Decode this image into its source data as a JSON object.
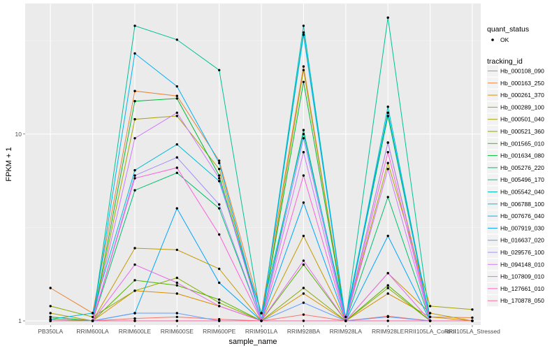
{
  "chart_data": {
    "type": "line",
    "xlabel": "sample_name",
    "ylabel": "FPKM + 1",
    "y_scale": "log",
    "ylim": [
      0.95,
      50
    ],
    "y_ticks": [
      {
        "value": 1,
        "label": "1"
      },
      {
        "value": 10,
        "label": "10"
      }
    ],
    "grid": true,
    "legend_position": "right",
    "categories": [
      "PB350LA",
      "RRIM600LA",
      "RRIM600LE",
      "RRIM600SE",
      "RRIM600PE",
      "RRIM901LA",
      "RRIM928BA",
      "RRIM928LA",
      "RRIM928LE",
      "RRII105LA_Control",
      "RRII105LA_Stressed"
    ],
    "point_legend": {
      "title": "quant_status",
      "entries": [
        {
          "label": "OK"
        }
      ]
    },
    "series_legend_title": "tracking_id",
    "series": [
      {
        "name": "Hb_000108_090",
        "color": "#F8766D",
        "values": [
          1.0,
          1.0,
          1.03,
          1.05,
          1.02,
          1.0,
          1.08,
          1.0,
          1.06,
          1.0,
          1.0
        ]
      },
      {
        "name": "Hb_000163_250",
        "color": "#EB8335",
        "values": [
          1.5,
          1.1,
          17.0,
          16.0,
          7.2,
          1.1,
          23.0,
          1.0,
          9.0,
          1.05,
          1.04
        ]
      },
      {
        "name": "Hb_000261_370",
        "color": "#DA8F00",
        "values": [
          1.05,
          1.0,
          1.45,
          1.4,
          1.2,
          1.0,
          1.4,
          1.0,
          1.4,
          1.05,
          1.0
        ]
      },
      {
        "name": "Hb_000289_100",
        "color": "#C49A00",
        "values": [
          1.0,
          1.0,
          2.45,
          2.4,
          1.9,
          1.0,
          2.85,
          1.0,
          1.8,
          1.1,
          1.0
        ]
      },
      {
        "name": "Hb_000501_040",
        "color": "#A9A400",
        "values": [
          1.1,
          1.0,
          12.0,
          12.5,
          6.5,
          1.0,
          22.0,
          1.0,
          7.0,
          1.2,
          1.15
        ]
      },
      {
        "name": "Hb_000521_360",
        "color": "#86AC00",
        "values": [
          1.2,
          1.05,
          1.45,
          1.7,
          1.25,
          1.0,
          1.5,
          1.0,
          1.5,
          1.0,
          1.0
        ]
      },
      {
        "name": "Hb_001565_010",
        "color": "#53B400",
        "values": [
          1.02,
          1.0,
          1.65,
          1.55,
          1.3,
          1.0,
          2.0,
          1.0,
          1.55,
          1.0,
          1.0
        ]
      },
      {
        "name": "Hb_001634_080",
        "color": "#00BA38",
        "values": [
          1.0,
          1.0,
          15.0,
          15.5,
          6.0,
          1.0,
          19.0,
          1.0,
          12.5,
          1.0,
          1.0
        ]
      },
      {
        "name": "Hb_005276_220",
        "color": "#00BE6C",
        "values": [
          1.05,
          1.0,
          5.0,
          6.2,
          4.0,
          1.0,
          10.5,
          1.0,
          4.6,
          1.0,
          1.0
        ]
      },
      {
        "name": "Hb_005496_170",
        "color": "#00C094",
        "values": [
          1.0,
          1.0,
          38.0,
          32.0,
          22.0,
          1.0,
          35.0,
          1.0,
          42.0,
          1.0,
          1.0
        ]
      },
      {
        "name": "Hb_005542_040",
        "color": "#00BFB9",
        "values": [
          1.0,
          1.0,
          1.0,
          1.0,
          1.0,
          1.0,
          38.0,
          1.0,
          14.0,
          1.0,
          1.0
        ]
      },
      {
        "name": "Hb_006788_100",
        "color": "#00BBDA",
        "values": [
          1.02,
          1.1,
          6.4,
          8.8,
          5.6,
          1.1,
          10.0,
          1.05,
          13.0,
          1.0,
          1.0
        ]
      },
      {
        "name": "Hb_007676_040",
        "color": "#00B2F4",
        "values": [
          1.0,
          1.0,
          27.0,
          18.0,
          7.0,
          1.0,
          34.0,
          1.0,
          13.0,
          1.0,
          1.0
        ]
      },
      {
        "name": "Hb_007919_030",
        "color": "#00A5FF",
        "values": [
          1.0,
          1.0,
          1.1,
          4.0,
          1.6,
          1.0,
          4.3,
          1.0,
          2.85,
          1.0,
          1.0
        ]
      },
      {
        "name": "Hb_016637_020",
        "color": "#619CFF",
        "values": [
          1.0,
          1.0,
          1.1,
          1.1,
          1.0,
          1.0,
          1.25,
          1.0,
          1.05,
          1.0,
          1.0
        ]
      },
      {
        "name": "Hb_029576_100",
        "color": "#A58AFF",
        "values": [
          1.0,
          1.0,
          6.0,
          7.5,
          4.2,
          1.0,
          9.5,
          1.0,
          9.0,
          1.0,
          1.0
        ]
      },
      {
        "name": "Hb_094148_010",
        "color": "#CE79FF",
        "values": [
          1.0,
          1.0,
          9.5,
          13.0,
          5.8,
          1.0,
          8.0,
          1.0,
          6.5,
          1.0,
          1.0
        ]
      },
      {
        "name": "Hb_107809_010",
        "color": "#EA6AEF",
        "values": [
          1.0,
          1.0,
          2.0,
          1.6,
          1.2,
          1.0,
          2.1,
          1.0,
          1.8,
          1.0,
          1.0
        ]
      },
      {
        "name": "Hb_127661_010",
        "color": "#FB61D7",
        "values": [
          1.0,
          1.0,
          5.8,
          6.6,
          2.9,
          1.0,
          6.0,
          1.0,
          8.0,
          1.0,
          1.0
        ]
      },
      {
        "name": "Hb_170878_050",
        "color": "#FF67A4",
        "values": [
          1.0,
          1.0,
          1.0,
          1.0,
          1.0,
          1.0,
          1.0,
          1.0,
          1.0,
          1.0,
          1.0
        ]
      }
    ]
  }
}
